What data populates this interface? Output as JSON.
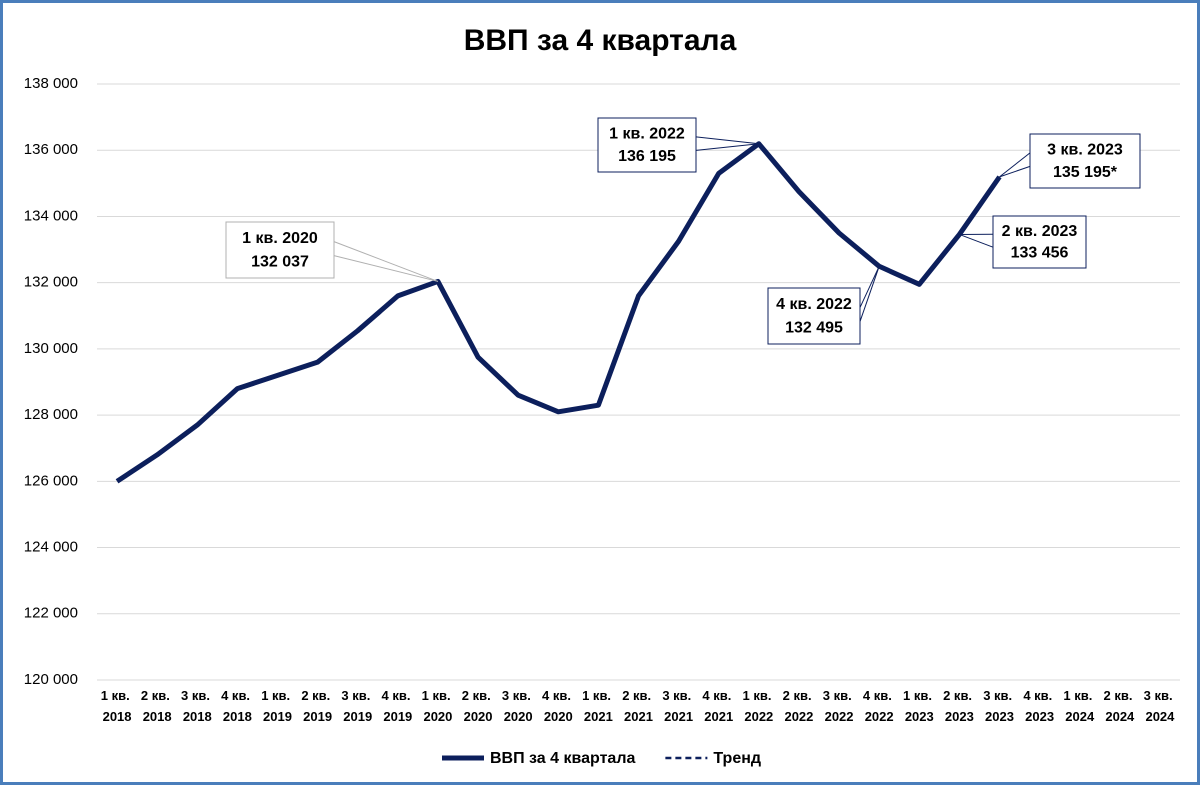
{
  "chart_data": {
    "type": "line",
    "title": "ВВП за 4 квартала",
    "categories": [
      "1 кв. 2018",
      "2 кв. 2018",
      "3 кв. 2018",
      "4 кв. 2018",
      "1 кв. 2019",
      "2 кв. 2019",
      "3 кв. 2019",
      "4 кв. 2019",
      "1 кв. 2020",
      "2 кв. 2020",
      "3 кв. 2020",
      "4 кв. 2020",
      "1 кв. 2021",
      "2 кв. 2021",
      "3 кв. 2021",
      "4 кв. 2021",
      "1 кв. 2022",
      "2 кв. 2022",
      "3 кв. 2022",
      "4 кв. 2022",
      "1 кв. 2023",
      "2 кв. 2023",
      "3 кв. 2023",
      "4 кв. 2023",
      "1 кв. 2024",
      "2 кв. 2024",
      "3 кв. 2024"
    ],
    "series": [
      {
        "name": "ВВП за 4 квартала",
        "color": "#0c1f5c",
        "values": [
          126000,
          126800,
          127700,
          128800,
          129200,
          129600,
          130550,
          131600,
          132037,
          129750,
          128600,
          128100,
          128300,
          131600,
          133250,
          135300,
          136195,
          134750,
          133500,
          132495,
          131950,
          133456,
          135195,
          null,
          null,
          null,
          null
        ],
        "value_labels": [
          null,
          null,
          null,
          null,
          null,
          null,
          null,
          null,
          "132 037",
          null,
          null,
          null,
          null,
          null,
          null,
          null,
          "136 195",
          null,
          null,
          "132 495",
          null,
          "133 456",
          "135 195*",
          null,
          null,
          null,
          null
        ]
      },
      {
        "name": "Тренд",
        "color": "#0c1f5c",
        "dashed": true,
        "values": [
          null,
          null,
          null,
          null,
          null,
          null,
          null,
          null,
          null,
          null,
          null,
          null,
          null,
          null,
          null,
          null,
          null,
          null,
          null,
          null,
          null,
          null,
          null,
          null,
          null,
          null,
          null
        ]
      }
    ],
    "ylim": [
      120000,
      138000
    ],
    "yticks": [
      {
        "value": 120000,
        "label": "120 000"
      },
      {
        "value": 122000,
        "label": "122 000"
      },
      {
        "value": 124000,
        "label": "124 000"
      },
      {
        "value": 126000,
        "label": "126 000"
      },
      {
        "value": 128000,
        "label": "128 000"
      },
      {
        "value": 130000,
        "label": "130 000"
      },
      {
        "value": 132000,
        "label": "132 000"
      },
      {
        "value": 134000,
        "label": "134 000"
      },
      {
        "value": 136000,
        "label": "136 000"
      },
      {
        "value": 138000,
        "label": "138 000"
      }
    ],
    "grid": true,
    "legend": "bottom"
  }
}
